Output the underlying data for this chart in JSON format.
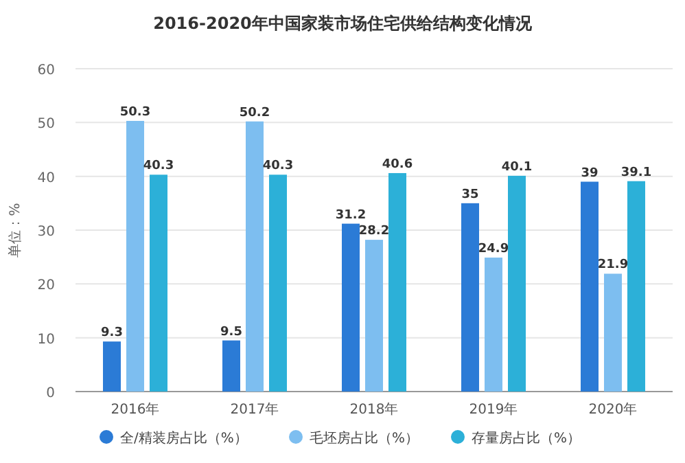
{
  "chart_data": {
    "type": "bar",
    "title": "2016-2020年中国家装市场住宅供给结构变化情况",
    "ylabel": "单位：%",
    "categories": [
      "2016年",
      "2017年",
      "2018年",
      "2019年",
      "2020年"
    ],
    "series": [
      {
        "name": "全/精装房占比（%）",
        "color": "#2b7bd6",
        "values": [
          9.3,
          9.5,
          31.2,
          35,
          39
        ]
      },
      {
        "name": "毛坯房占比（%）",
        "color": "#7dbef0",
        "values": [
          50.3,
          50.2,
          28.2,
          24.9,
          21.9
        ]
      },
      {
        "name": "存量房占比（%）",
        "color": "#2cb0d8",
        "values": [
          40.3,
          40.3,
          40.6,
          40.1,
          39.1
        ]
      }
    ],
    "ylim": [
      0,
      60
    ],
    "yticks": [
      0,
      10,
      20,
      30,
      40,
      50,
      60
    ],
    "grid": "y",
    "legend": "bottom",
    "data_labels": true
  }
}
